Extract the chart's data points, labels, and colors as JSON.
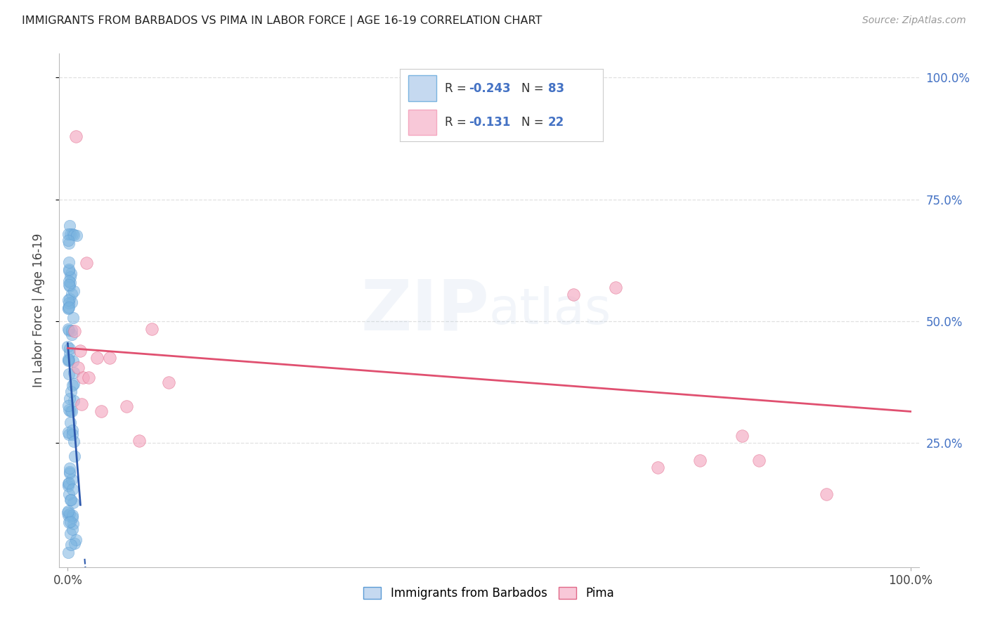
{
  "title": "IMMIGRANTS FROM BARBADOS VS PIMA IN LABOR FORCE | AGE 16-19 CORRELATION CHART",
  "source": "Source: ZipAtlas.com",
  "ylabel": "In Labor Force | Age 16-19",
  "blue_color": "#7ab4e0",
  "blue_edge": "#5b9bd5",
  "pink_color": "#f4a8c0",
  "pink_edge": "#e06888",
  "blue_line_color": "#2e5aad",
  "pink_line_color": "#e05070",
  "legend_blue_fill": "#c5d9f0",
  "legend_pink_fill": "#f8c8d8",
  "legend_r_color": "#4472c4",
  "legend_n_color": "#4472c4",
  "watermark_color": "#b8cce4",
  "grid_color": "#dddddd",
  "ytick_color": "#4472c4",
  "blue_slope": -22.0,
  "blue_intercept": 0.455,
  "pink_slope": -0.13,
  "pink_intercept": 0.445,
  "xlim": [
    0.0,
    1.0
  ],
  "ylim": [
    0.0,
    1.05
  ],
  "yticks": [
    0.25,
    0.5,
    0.75,
    1.0
  ],
  "ytick_labels": [
    "25.0%",
    "50.0%",
    "75.0%",
    "100.0%"
  ],
  "xticks": [
    0.0,
    1.0
  ],
  "xtick_labels": [
    "0.0%",
    "100.0%"
  ],
  "legend_r1": "-0.243",
  "legend_n1": "83",
  "legend_r2": "-0.131",
  "legend_n2": "22",
  "pink_x": [
    0.01,
    0.022,
    0.008,
    0.015,
    0.012,
    0.018,
    0.016,
    0.05,
    0.6,
    0.65,
    0.8,
    0.82,
    0.7,
    0.75,
    0.9,
    0.1,
    0.12,
    0.085,
    0.07,
    0.035,
    0.025,
    0.04
  ],
  "pink_y": [
    0.88,
    0.62,
    0.48,
    0.44,
    0.405,
    0.385,
    0.33,
    0.425,
    0.555,
    0.57,
    0.265,
    0.215,
    0.2,
    0.215,
    0.145,
    0.485,
    0.375,
    0.255,
    0.325,
    0.425,
    0.385,
    0.315
  ]
}
